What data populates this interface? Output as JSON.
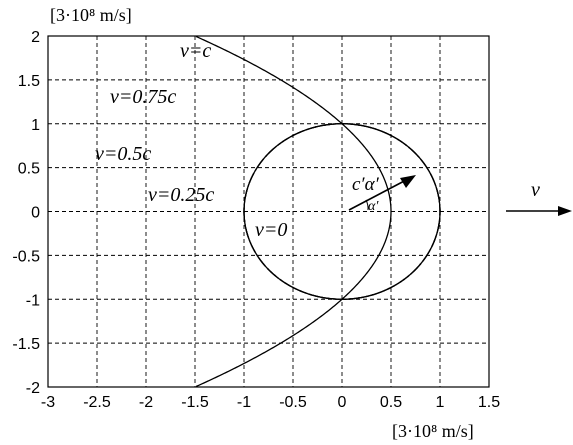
{
  "chart_data": {
    "type": "line",
    "xlim": [
      -3,
      1.5
    ],
    "ylim": [
      -2,
      2
    ],
    "grid": true,
    "xticks": [
      "-3",
      "-2.5",
      "-2",
      "-1.5",
      "-1",
      "-0.5",
      "0",
      "0.5",
      "1",
      "1.5"
    ],
    "yticks": [
      "2",
      "1.5",
      "1",
      "0.5",
      "0",
      "-0.5",
      "-1",
      "-1.5",
      "-2"
    ],
    "x_unit": "[3·10⁸ m/s]",
    "y_unit": "[3·10⁸ m/s]",
    "series": [
      {
        "name": "v=0",
        "beta": 0,
        "style": "solid",
        "color": "#000000"
      },
      {
        "name": "v=0.25c",
        "beta": 0.25,
        "style": "dashdot",
        "color": "#000000"
      },
      {
        "name": "v=0.5c",
        "beta": 0.5,
        "style": "dashed",
        "color": "#000000"
      },
      {
        "name": "v=0.75c",
        "beta": 0.75,
        "style": "dotted",
        "color": "#000000"
      },
      {
        "name": "v=c",
        "beta": 1,
        "style": "solid",
        "color": "#000000"
      }
    ],
    "annotations": {
      "velocity_label": "v",
      "vector_label": "c′α′",
      "angle_label": "α′"
    }
  }
}
